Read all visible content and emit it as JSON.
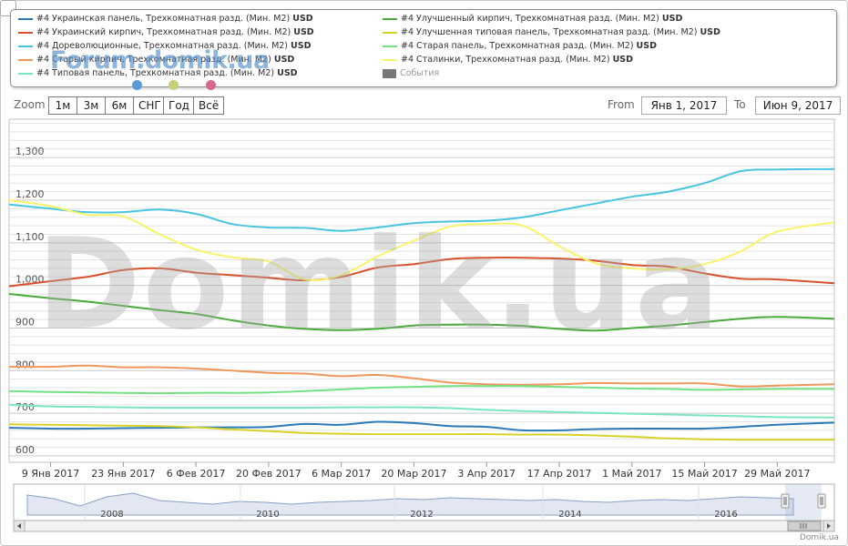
{
  "legend": {
    "items": [
      {
        "label": "#4 Украинская панель, Трехкомнатная разд. (Мин. М2)",
        "unit": "USD",
        "color": "#2a7ab8"
      },
      {
        "label": "#4 Украинский кирпич, Трехкомнатная разд. (Мин. М2)",
        "unit": "USD",
        "color": "#d9512c"
      },
      {
        "label": "#4 Дореволюционные, Трехкомнатная разд. (Мин. М2)",
        "unit": "USD",
        "color": "#49c4e0"
      },
      {
        "label": "#4 Старый кирпич, Трехкомнатная разд. (Мин. М2)",
        "unit": "USD",
        "color": "#f0975c"
      },
      {
        "label": "#4 Типовая панель, Трехкомнатная разд. (Мин. М2)",
        "unit": "USD",
        "color": "#7ae6c0"
      },
      {
        "label": "#4 Улучшенный кирпич, Трехкомнатная разд. (Мин. М2)",
        "unit": "USD",
        "color": "#4aaa3c"
      },
      {
        "label": "#4 Улучшенная типовая панель, Трехкомнатная разд. (Мин. М2)",
        "unit": "USD",
        "color": "#d6d22a"
      },
      {
        "label": "#4 Старая панель, Трехкомнатная разд. (Мин. М2)",
        "unit": "USD",
        "color": "#74e084"
      },
      {
        "label": "#4 Сталинки, Трехкомнатная разд. (Мин. М2)",
        "unit": "USD",
        "color": "#f9f36a"
      }
    ],
    "events_label": "События"
  },
  "watermarks": {
    "forum": "Forum.domik.ua",
    "main": "Domik.ua",
    "credit": "Domik.ua"
  },
  "zoom": {
    "label": "Zoom",
    "buttons": [
      "1м",
      "3м",
      "6м",
      "СНГ",
      "Год",
      "Всё"
    ]
  },
  "range": {
    "from_label": "From",
    "from_value": "Янв 1, 2017",
    "to_label": "To",
    "to_value": "Июн 9, 2017"
  },
  "navigator": {
    "year_labels": [
      "2008",
      "2010",
      "2012",
      "2014",
      "2016"
    ]
  },
  "chart_data": {
    "type": "line",
    "x_tick_labels": [
      "9 Янв 2017",
      "23 Янв 2017",
      "6 Фев 2017",
      "20 Фев 2017",
      "6 Мар 2017",
      "20 Мар 2017",
      "3 Апр 2017",
      "17 Апр 2017",
      "1 Май 2017",
      "15 Май 2017",
      "29 Май 2017"
    ],
    "x_dates": [
      "2017-01-01",
      "2017-01-09",
      "2017-01-16",
      "2017-01-23",
      "2017-01-30",
      "2017-02-06",
      "2017-02-13",
      "2017-02-20",
      "2017-02-27",
      "2017-03-06",
      "2017-03-13",
      "2017-03-20",
      "2017-03-27",
      "2017-04-03",
      "2017-04-10",
      "2017-04-17",
      "2017-04-24",
      "2017-05-01",
      "2017-05-08",
      "2017-05-15",
      "2017-05-22",
      "2017-05-29",
      "2017-06-09"
    ],
    "y_ticks": [
      600,
      700,
      800,
      900,
      1000,
      1100,
      1200,
      1300
    ],
    "y_tick_labels": [
      "600",
      "700",
      "800",
      "900",
      "1,000",
      "1,100",
      "1,200",
      "1,300"
    ],
    "ylim": [
      585,
      1390
    ],
    "xlim": [
      "2017-01-01",
      "2017-06-09"
    ],
    "grid": true,
    "series": [
      {
        "name": "#4 Украинская панель, Трехкомнатная разд. (Мин. М2)",
        "color": "#2a7ab8",
        "values": [
          666,
          664,
          664,
          665,
          666,
          667,
          667,
          668,
          675,
          673,
          680,
          677,
          670,
          668,
          660,
          660,
          663,
          664,
          664,
          664,
          668,
          673,
          678
        ]
      },
      {
        "name": "#4 Украинский кирпич, Трехкомнатная разд. (Мин. М2)",
        "color": "#d9512c",
        "values": [
          998,
          1010,
          1020,
          1036,
          1040,
          1030,
          1024,
          1018,
          1012,
          1020,
          1042,
          1050,
          1062,
          1065,
          1065,
          1063,
          1058,
          1048,
          1044,
          1028,
          1016,
          1014,
          1005
        ]
      },
      {
        "name": "#4 Дореволюционные, Трехкомнатная разд. (Мин. М2)",
        "color": "#49c4e0",
        "values": [
          1190,
          1180,
          1172,
          1172,
          1178,
          1168,
          1144,
          1136,
          1135,
          1128,
          1136,
          1146,
          1150,
          1152,
          1160,
          1176,
          1192,
          1208,
          1220,
          1240,
          1268,
          1272,
          1273
        ]
      },
      {
        "name": "#4 Старый кирпич, Трехкомнатная разд. (Мин. М2)",
        "color": "#f0975c",
        "values": [
          809,
          809,
          812,
          808,
          808,
          805,
          800,
          795,
          793,
          787,
          790,
          782,
          772,
          768,
          767,
          768,
          771,
          770,
          770,
          770,
          763,
          765,
          768
        ]
      },
      {
        "name": "#4 Типовая панель, Трехкомнатная разд. (Мин. М2)",
        "color": "#7ae6c0",
        "values": [
          720,
          716,
          715,
          714,
          713,
          713,
          713,
          713,
          713,
          714,
          714,
          714,
          712,
          708,
          705,
          703,
          701,
          699,
          697,
          695,
          693,
          691,
          690
        ]
      },
      {
        "name": "#4 Улучшенный кирпич, Трехкомнатная разд. (Мин. М2)",
        "color": "#4aaa3c",
        "values": [
          980,
          970,
          962,
          952,
          942,
          933,
          918,
          906,
          898,
          895,
          898,
          906,
          908,
          908,
          905,
          898,
          894,
          900,
          906,
          914,
          922,
          926,
          922
        ]
      },
      {
        "name": "#4 Улучшенная типовая панель, Трехкомнатная разд. (Мин. М2)",
        "color": "#d6d22a",
        "values": [
          674,
          673,
          672,
          671,
          670,
          667,
          662,
          658,
          654,
          652,
          651,
          651,
          651,
          651,
          650,
          650,
          648,
          645,
          641,
          639,
          638,
          638,
          638
        ]
      },
      {
        "name": "#4 Старая панель, Трехкомнатная разд. (Мин. М2)",
        "color": "#74e084",
        "values": [
          752,
          750,
          749,
          748,
          747,
          748,
          748,
          749,
          752,
          756,
          760,
          762,
          764,
          764,
          764,
          762,
          760,
          758,
          757,
          755,
          756,
          757,
          757
        ]
      },
      {
        "name": "#4 Сталинки, Трехкомнатная разд. (Мин. М2)",
        "color": "#f9f36a",
        "values": [
          1200,
          1186,
          1166,
          1162,
          1120,
          1084,
          1066,
          1056,
          1014,
          1024,
          1068,
          1105,
          1138,
          1144,
          1140,
          1092,
          1052,
          1040,
          1038,
          1050,
          1080,
          1126,
          1148
        ]
      }
    ]
  }
}
